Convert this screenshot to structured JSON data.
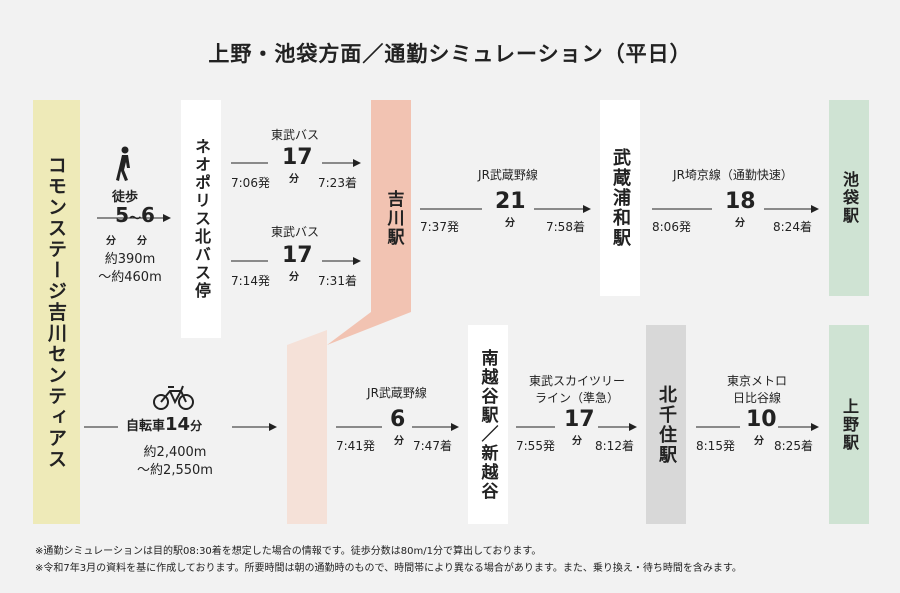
{
  "title": "上野・池袋方面／通勤シミュレーション（平日）",
  "stations": {
    "home": "コモンステージ吉川センティアス",
    "neo": "ネオポリス北バス停",
    "yoshikawa": "吉川駅",
    "musashi_urawa": "武蔵浦和駅",
    "ikebukuro": "池袋駅",
    "minami_koshigaya": "南越谷駅／新越谷",
    "kitasenju": "北千住駅",
    "ueno": "上野駅"
  },
  "walk": {
    "label": "徒歩",
    "min_a": "5",
    "tilde": "～",
    "min_b": "6",
    "unit": "分",
    "dist_1": "約390m",
    "dist_2": "～約460m"
  },
  "bike": {
    "label": "自転車",
    "minutes": "14",
    "unit": "分",
    "dist_1": "約2,400m",
    "dist_2": "～約2,550m"
  },
  "bus1": {
    "line": "東武バス",
    "minutes": "17",
    "unit": "分",
    "dep": "7:06発",
    "arr": "7:23着"
  },
  "bus2": {
    "line": "東武バス",
    "minutes": "17",
    "unit": "分",
    "dep": "7:14発",
    "arr": "7:31着"
  },
  "jr_musashino_1": {
    "line": "JR武蔵野線",
    "minutes": "21",
    "unit": "分",
    "dep": "7:37発",
    "arr": "7:58着"
  },
  "jr_saikyo": {
    "line": "JR埼京線（通勤快速）",
    "minutes": "18",
    "unit": "分",
    "dep": "8:06発",
    "arr": "8:24着"
  },
  "jr_musashino_2": {
    "line": "JR武蔵野線",
    "minutes": "6",
    "unit": "分",
    "dep": "7:41発",
    "arr": "7:47着"
  },
  "tobu_skytree": {
    "line_1": "東武スカイツリー",
    "line_2": "ライン（準急）",
    "minutes": "17",
    "unit": "分",
    "dep": "7:55発",
    "arr": "8:12着"
  },
  "metro_hibiya": {
    "line_1": "東京メトロ",
    "line_2": "日比谷線",
    "minutes": "10",
    "unit": "分",
    "dep": "8:15発",
    "arr": "8:25着"
  },
  "notes": [
    "※通勤シミュレーションは目的駅08:30着を想定した場合の情報です。徒歩分数は80m/1分で算出しております。",
    "※令和7年3月の資料を基に作成しております。所要時間は朝の通勤時のもので、時間帯により異なる場合があります。また、乗り換え・待ち時間を含みます。"
  ],
  "colors": {
    "home_bar": "#eeeab8",
    "yoshikawa_bar": "#f2c3b2",
    "yoshikawa_lower": "#f5e1d8",
    "destination_bar": "#cfe3d3",
    "kitasenju_bar": "#d8d8d8"
  }
}
